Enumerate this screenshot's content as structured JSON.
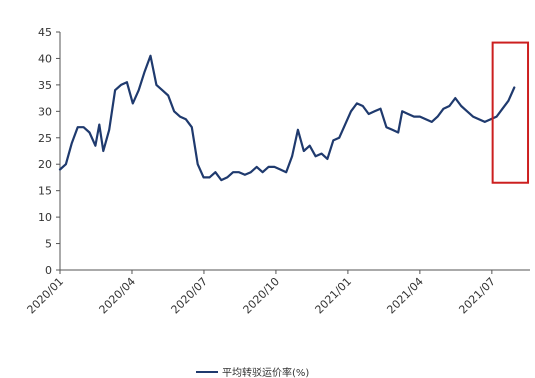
{
  "chart_data": {
    "type": "line",
    "title": "",
    "xlabel": "",
    "ylabel": "",
    "ylim": [
      0,
      45
    ],
    "yticks": [
      0,
      5,
      10,
      15,
      20,
      25,
      30,
      35,
      40,
      45
    ],
    "x_tick_labels": [
      "2020/01",
      "2020/04",
      "2020/07",
      "2020/10",
      "2021/01",
      "2021/04",
      "2021/07"
    ],
    "grid": false,
    "legend_position": "bottom",
    "series": [
      {
        "name": "平均转驳运价率(%)",
        "color": "#1f3a6e",
        "points": [
          [
            0.0,
            19
          ],
          [
            0.15,
            20
          ],
          [
            0.3,
            24
          ],
          [
            0.45,
            27
          ],
          [
            0.6,
            27
          ],
          [
            0.75,
            26
          ],
          [
            0.9,
            23.5
          ],
          [
            1.0,
            27.5
          ],
          [
            1.1,
            22.5
          ],
          [
            1.25,
            26.5
          ],
          [
            1.4,
            34
          ],
          [
            1.55,
            35
          ],
          [
            1.7,
            35.5
          ],
          [
            1.85,
            31.5
          ],
          [
            2.0,
            34
          ],
          [
            2.15,
            37.5
          ],
          [
            2.3,
            40.5
          ],
          [
            2.45,
            35
          ],
          [
            2.6,
            34
          ],
          [
            2.75,
            33
          ],
          [
            2.9,
            30
          ],
          [
            3.05,
            29
          ],
          [
            3.2,
            28.5
          ],
          [
            3.35,
            27
          ],
          [
            3.5,
            20
          ],
          [
            3.65,
            17.5
          ],
          [
            3.8,
            17.5
          ],
          [
            3.95,
            18.5
          ],
          [
            4.1,
            17
          ],
          [
            4.25,
            17.5
          ],
          [
            4.4,
            18.5
          ],
          [
            4.55,
            18.5
          ],
          [
            4.7,
            18
          ],
          [
            4.85,
            18.5
          ],
          [
            5.0,
            19.5
          ],
          [
            5.15,
            18.5
          ],
          [
            5.3,
            19.5
          ],
          [
            5.45,
            19.5
          ],
          [
            5.6,
            19
          ],
          [
            5.75,
            18.5
          ],
          [
            5.9,
            21.5
          ],
          [
            6.05,
            26.5
          ],
          [
            6.2,
            22.5
          ],
          [
            6.35,
            23.5
          ],
          [
            6.5,
            21.5
          ],
          [
            6.65,
            22
          ],
          [
            6.8,
            21
          ],
          [
            6.95,
            24.5
          ],
          [
            7.1,
            25
          ],
          [
            7.25,
            27.5
          ],
          [
            7.4,
            30
          ],
          [
            7.55,
            31.5
          ],
          [
            7.7,
            31
          ],
          [
            7.85,
            29.5
          ],
          [
            8.0,
            30
          ],
          [
            8.15,
            30.5
          ],
          [
            8.3,
            27
          ],
          [
            8.45,
            26.5
          ],
          [
            8.6,
            26
          ],
          [
            8.7,
            30
          ],
          [
            8.85,
            29.5
          ],
          [
            9.0,
            29
          ],
          [
            9.15,
            29
          ],
          [
            9.3,
            28.5
          ],
          [
            9.45,
            28
          ],
          [
            9.6,
            29
          ],
          [
            9.75,
            30.5
          ],
          [
            9.9,
            31
          ],
          [
            10.05,
            32.5
          ],
          [
            10.2,
            31
          ],
          [
            10.35,
            30
          ],
          [
            10.5,
            29
          ],
          [
            10.65,
            28.5
          ],
          [
            10.8,
            28
          ],
          [
            10.95,
            28.5
          ],
          [
            11.1,
            29
          ],
          [
            11.25,
            30.5
          ],
          [
            11.4,
            32
          ],
          [
            11.55,
            34.5
          ]
        ]
      }
    ],
    "annotations": [
      {
        "type": "highlight-box",
        "color": "#cc1f1f",
        "x_range": [
          11.0,
          11.9
        ],
        "y_range": [
          16.5,
          43
        ]
      }
    ]
  }
}
